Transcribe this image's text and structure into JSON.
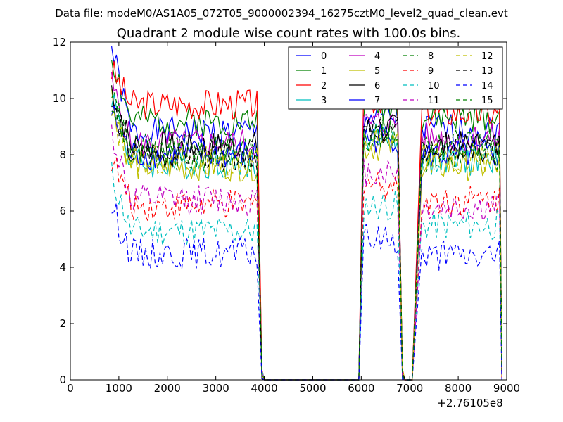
{
  "header": "Data file: modeM0/AS1A05_072T05_9000002394_16275cztM0_level2_quad_clean.evt",
  "chart_data": {
    "type": "line",
    "title": "Quadrant 2 module wise count rates with 100.0s bins.",
    "xlabel": "",
    "ylabel": "",
    "x_offset_label": "+2.76105e8",
    "xlim": [
      0,
      9000
    ],
    "ylim": [
      0,
      12
    ],
    "xticks": [
      0,
      1000,
      2000,
      3000,
      4000,
      5000,
      6000,
      7000,
      8000,
      9000
    ],
    "yticks": [
      0,
      2,
      4,
      6,
      8,
      10,
      12
    ],
    "grid": false,
    "legend_position": "top-right",
    "segments": [
      {
        "x_start": 850,
        "x_end": 3850,
        "fall_to": 3950
      },
      {
        "x_start": 6050,
        "x_end": 6750,
        "rise_from": 5950,
        "fall_to": 6850
      },
      {
        "x_start": 7250,
        "x_end": 8850,
        "rise_from": 7050,
        "fall_to": 8900
      }
    ],
    "series": [
      {
        "name": "0",
        "color": "#0000ff",
        "dash": "solid",
        "segments": [
          {
            "start": 11.8,
            "level": 8.8
          },
          {
            "level": 9.3
          },
          {
            "level": 8.9
          }
        ]
      },
      {
        "name": "1",
        "color": "#008000",
        "dash": "solid",
        "segments": [
          {
            "start": 11.5,
            "level": 9.2
          },
          {
            "level": 9.8
          },
          {
            "level": 9.3
          }
        ]
      },
      {
        "name": "2",
        "color": "#ff0000",
        "dash": "solid",
        "segments": [
          {
            "start": 11.0,
            "level": 9.8
          },
          {
            "level": 10.0
          },
          {
            "level": 9.5
          }
        ]
      },
      {
        "name": "3",
        "color": "#00bfbf",
        "dash": "solid",
        "segments": [
          {
            "start": 10.2,
            "level": 7.7
          },
          {
            "level": 8.6
          },
          {
            "level": 7.8
          }
        ]
      },
      {
        "name": "4",
        "color": "#bf00bf",
        "dash": "solid",
        "segments": [
          {
            "start": 10.5,
            "level": 8.4
          },
          {
            "level": 9.1
          },
          {
            "level": 8.6
          }
        ]
      },
      {
        "name": "5",
        "color": "#bfbf00",
        "dash": "solid",
        "segments": [
          {
            "start": 10.1,
            "level": 7.6
          },
          {
            "level": 8.3
          },
          {
            "level": 7.6
          }
        ]
      },
      {
        "name": "6",
        "color": "#000000",
        "dash": "solid",
        "segments": [
          {
            "start": 10.4,
            "level": 8.3
          },
          {
            "level": 8.9
          },
          {
            "level": 8.3
          }
        ]
      },
      {
        "name": "7",
        "color": "#0000ff",
        "dash": "solid",
        "segments": [
          {
            "start": 9.5,
            "level": 8.0
          },
          {
            "level": 8.6
          },
          {
            "level": 8.0
          }
        ]
      },
      {
        "name": "8",
        "color": "#008000",
        "dash": "dashed",
        "segments": [
          {
            "start": 10.3,
            "level": 7.9
          },
          {
            "level": 8.7
          },
          {
            "level": 7.9
          }
        ]
      },
      {
        "name": "9",
        "color": "#ff0000",
        "dash": "dashed",
        "segments": [
          {
            "start": 7.9,
            "level": 6.2
          },
          {
            "level": 7.0
          },
          {
            "level": 6.4
          }
        ]
      },
      {
        "name": "10",
        "color": "#00bfbf",
        "dash": "dashed",
        "segments": [
          {
            "start": 7.3,
            "level": 5.3
          },
          {
            "level": 6.2
          },
          {
            "level": 5.5
          }
        ]
      },
      {
        "name": "11",
        "color": "#bf00bf",
        "dash": "dashed",
        "segments": [
          {
            "start": 8.8,
            "level": 6.4
          },
          {
            "level": 7.4
          },
          {
            "level": 6.1
          }
        ]
      },
      {
        "name": "12",
        "color": "#bfbf00",
        "dash": "dashed",
        "segments": [
          {
            "start": 9.3,
            "level": 7.8
          },
          {
            "level": 8.5
          },
          {
            "level": 7.9
          }
        ]
      },
      {
        "name": "13",
        "color": "#000000",
        "dash": "dashed",
        "segments": [
          {
            "start": 9.8,
            "level": 8.0
          },
          {
            "level": 8.8
          },
          {
            "level": 8.2
          }
        ]
      },
      {
        "name": "14",
        "color": "#0000ff",
        "dash": "dashed",
        "segments": [
          {
            "start": 6.2,
            "level": 4.5
          },
          {
            "level": 5.0
          },
          {
            "level": 4.4
          }
        ]
      },
      {
        "name": "15",
        "color": "#008000",
        "dash": "dashed",
        "segments": [
          {
            "start": 10.0,
            "level": 8.2
          },
          {
            "level": 8.8
          },
          {
            "level": 8.4
          }
        ]
      }
    ]
  }
}
